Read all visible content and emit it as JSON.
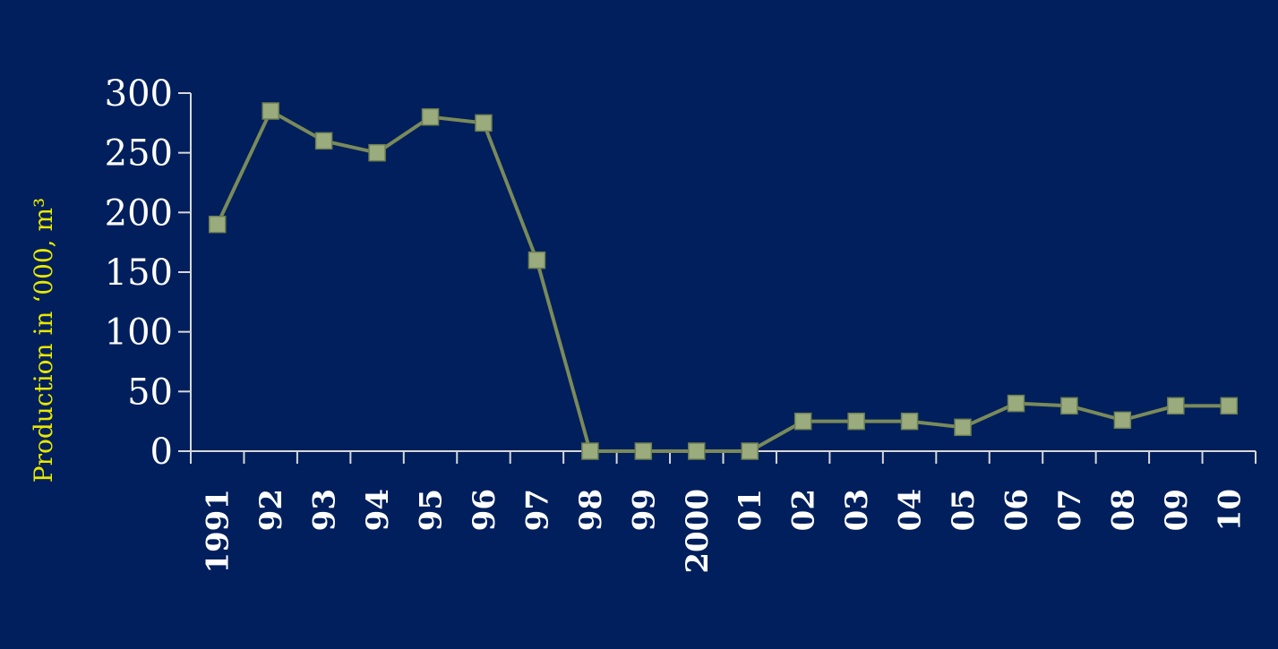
{
  "chart_data": {
    "type": "line",
    "title": "",
    "ylabel": "Production in ‘000, m³",
    "xlabel": "",
    "categories": [
      "1991",
      "92",
      "93",
      "94",
      "95",
      "96",
      "97",
      "98",
      "99",
      "2000",
      "01",
      "02",
      "03",
      "04",
      "05",
      "06",
      "07",
      "08",
      "09",
      "10"
    ],
    "series": [
      {
        "values": [
          190,
          285,
          260,
          250,
          280,
          275,
          160,
          0,
          0,
          0,
          0,
          25,
          25,
          25,
          20,
          40,
          38,
          26,
          38,
          38
        ]
      }
    ],
    "ylim": [
      0,
      300
    ],
    "yticks": [
      0,
      50,
      100,
      150,
      200,
      250,
      300
    ],
    "grid": false,
    "legend": "none",
    "colors": {
      "background": "#001f5c",
      "line": "#7a8a5a",
      "marker": "#9aab7e",
      "axis": "#d8d8d8",
      "tick_text": "#ffffff",
      "ylabel_text": "#e8e800"
    }
  }
}
